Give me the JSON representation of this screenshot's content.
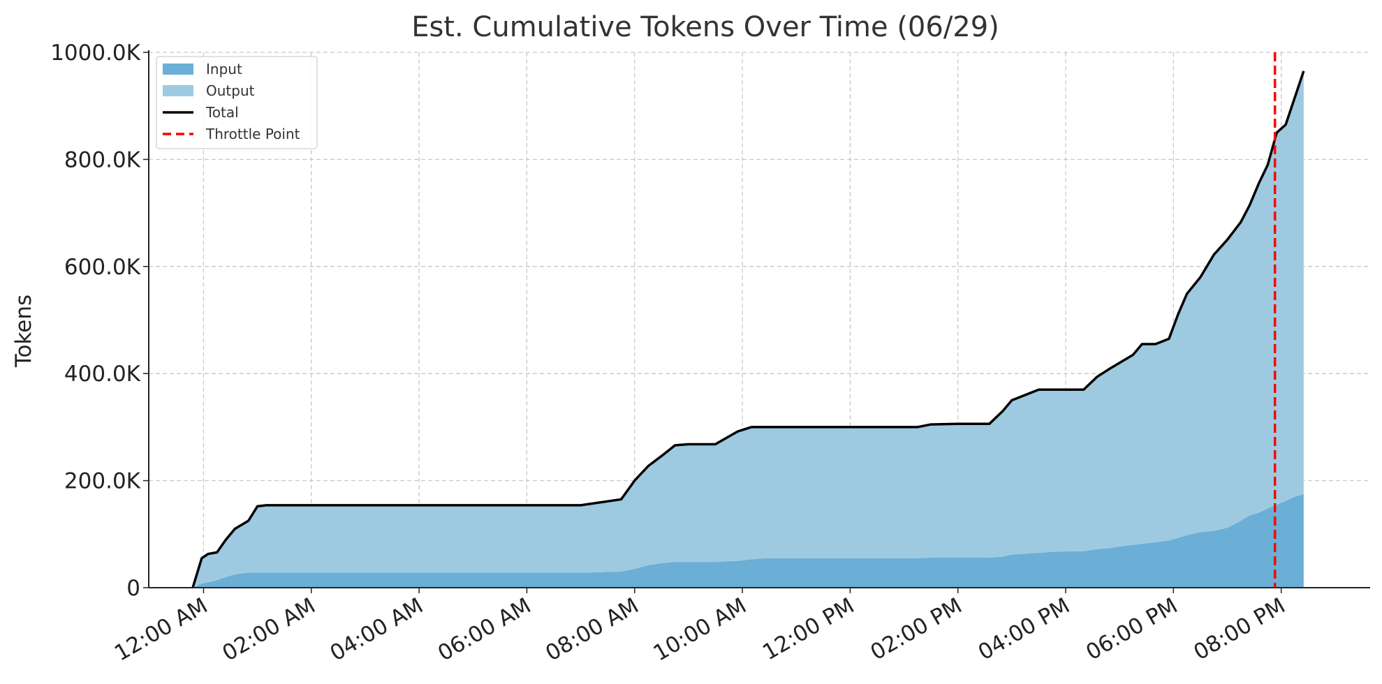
{
  "chart_data": {
    "type": "area",
    "title": "Est. Cumulative Tokens Over Time (06/29)",
    "xlabel": "",
    "ylabel": "Tokens",
    "ylim": [
      0,
      1000000
    ],
    "xlim": [
      "06/28 22:59",
      "06/29 21:39"
    ],
    "x_ticks": [
      "12:00 AM",
      "02:00 AM",
      "04:00 AM",
      "06:00 AM",
      "08:00 AM",
      "10:00 AM",
      "12:00 PM",
      "02:00 PM",
      "04:00 PM",
      "06:00 PM",
      "08:00 PM"
    ],
    "y_ticks": [
      "0",
      "200.0K",
      "400.0K",
      "600.0K",
      "800.0K",
      "1000.0K"
    ],
    "grid": true,
    "legend_position": "top-left",
    "stacked": true,
    "x": [
      "06/28 23:48",
      "06/28 23:58",
      "06/29 00:05",
      "06/29 00:15",
      "06/29 00:25",
      "06/29 00:35",
      "06/29 00:50",
      "06/29 01:00",
      "06/29 01:10",
      "06/29 01:20",
      "06/29 01:30",
      "06/29 07:00",
      "06/29 07:45",
      "06/29 08:00",
      "06/29 08:15",
      "06/29 08:30",
      "06/29 08:45",
      "06/29 09:00",
      "06/29 09:30",
      "06/29 09:55",
      "06/29 10:10",
      "06/29 10:25",
      "06/29 11:00",
      "06/29 13:15",
      "06/29 13:30",
      "06/29 14:00",
      "06/29 14:35",
      "06/29 14:50",
      "06/29 15:00",
      "06/29 15:30",
      "06/29 15:45",
      "06/29 16:05",
      "06/29 16:20",
      "06/29 16:35",
      "06/29 16:50",
      "06/29 17:00",
      "06/29 17:15",
      "06/29 17:25",
      "06/29 17:40",
      "06/29 17:55",
      "06/29 18:05",
      "06/29 18:15",
      "06/29 18:30",
      "06/29 18:45",
      "06/29 19:00",
      "06/29 19:15",
      "06/29 19:25",
      "06/29 19:35",
      "06/29 19:45",
      "06/29 19:55",
      "06/29 20:05",
      "06/29 20:15",
      "06/29 20:25"
    ],
    "series": [
      {
        "name": "Input",
        "color": "#6baed6",
        "values": [
          0,
          8000,
          10000,
          14000,
          20000,
          25000,
          28000,
          28000,
          28000,
          28000,
          28000,
          28000,
          30000,
          35000,
          42000,
          46000,
          48000,
          48000,
          48000,
          50000,
          53000,
          55000,
          55000,
          55000,
          56000,
          56000,
          56000,
          58000,
          62000,
          65000,
          67000,
          68000,
          68000,
          72000,
          74000,
          77000,
          80000,
          82000,
          85000,
          88000,
          93000,
          98000,
          104000,
          106000,
          112000,
          125000,
          135000,
          140000,
          148000,
          155000,
          162000,
          170000,
          175000
        ]
      },
      {
        "name": "Output",
        "color": "#9ecae1",
        "values": [
          0,
          47000,
          53000,
          52000,
          70000,
          85000,
          97000,
          124000,
          126000,
          126000,
          126000,
          126000,
          135000,
          165000,
          185000,
          200000,
          218000,
          220000,
          220000,
          242000,
          247000,
          245000,
          245000,
          245000,
          249000,
          250000,
          250000,
          272000,
          288000,
          305000,
          303000,
          302000,
          302000,
          322000,
          336000,
          343000,
          355000,
          373000,
          370000,
          377000,
          417000,
          451000,
          476000,
          516000,
          538000,
          558000,
          580000,
          615000,
          642000,
          695000,
          703000,
          745000,
          790000
        ]
      },
      {
        "name": "Total",
        "color": "#000000",
        "values": [
          0,
          55000,
          63000,
          66000,
          90000,
          110000,
          125000,
          152000,
          154000,
          154000,
          154000,
          154000,
          165000,
          200000,
          227000,
          246000,
          266000,
          268000,
          268000,
          292000,
          300000,
          300000,
          300000,
          300000,
          305000,
          306000,
          306000,
          330000,
          350000,
          370000,
          370000,
          370000,
          370000,
          394000,
          410000,
          420000,
          435000,
          455000,
          455000,
          465000,
          510000,
          549000,
          580000,
          622000,
          650000,
          683000,
          715000,
          755000,
          790000,
          850000,
          865000,
          915000,
          965000
        ]
      }
    ],
    "annotations": [
      {
        "name": "Throttle Point",
        "type": "vline",
        "x": "06/29 19:53",
        "color": "#ff0000",
        "style": "dashed"
      }
    ]
  }
}
